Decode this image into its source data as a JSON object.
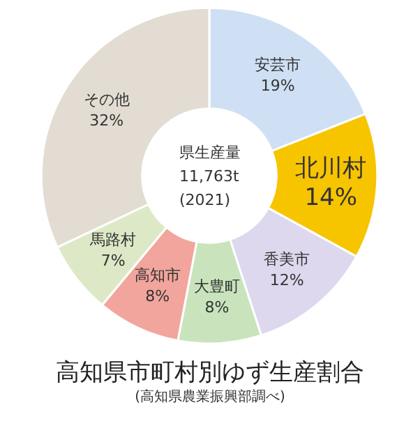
{
  "chart_data": {
    "type": "donut",
    "title": "高知県市町村別ゆず生産割合",
    "subtitle": "(高知県農業振興部調べ)",
    "annotations": [
      "県生産量",
      "11,763t",
      "(2021)"
    ],
    "categories": [
      "安芸市",
      "北川村",
      "香美市",
      "大豊町",
      "高知市",
      "馬路村",
      "その他"
    ],
    "values": [
      19,
      14,
      12,
      8,
      8,
      7,
      32
    ],
    "value_labels": [
      "19%",
      "14%",
      "12%",
      "8%",
      "8%",
      "7%",
      "32%"
    ],
    "colors": [
      "#cfe0f4",
      "#f7c400",
      "#ddd8ee",
      "#c9e4bc",
      "#f2a59c",
      "#dde9c6",
      "#e3dcd2"
    ],
    "legend": false
  }
}
